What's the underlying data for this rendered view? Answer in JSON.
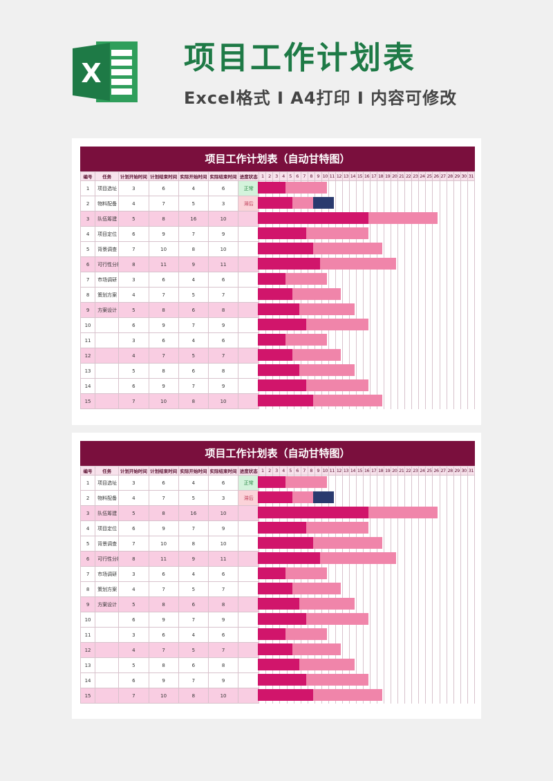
{
  "header": {
    "title": "项目工作计划表",
    "subtitle": "Excel格式 Ⅰ A4打印 Ⅰ 内容可修改",
    "logo_letter": "X"
  },
  "sheet": {
    "banner": "项目工作计划表（自动甘特图）",
    "columns": [
      "编号",
      "任务",
      "计划开始时间",
      "计划结束时间",
      "实际开始时间",
      "实际结束时间",
      "进度状态"
    ],
    "days": [
      "1",
      "2",
      "3",
      "4",
      "5",
      "6",
      "7",
      "8",
      "9",
      "10",
      "11",
      "12",
      "13",
      "14",
      "15",
      "16",
      "17",
      "18",
      "19",
      "20",
      "21",
      "22",
      "23",
      "24",
      "25",
      "26",
      "27",
      "28",
      "29",
      "30",
      "31"
    ],
    "rows": [
      {
        "no": "1",
        "task": "项目选址",
        "ps": "3",
        "pe": "6",
        "as": "4",
        "ae": "6",
        "status": "正常"
      },
      {
        "no": "2",
        "task": "物料配备",
        "ps": "4",
        "pe": "7",
        "as": "5",
        "ae": "3",
        "status": "滞后"
      },
      {
        "no": "3",
        "task": "队伍筹建",
        "ps": "5",
        "pe": "8",
        "as": "16",
        "ae": "10",
        "status": ""
      },
      {
        "no": "4",
        "task": "项目定位",
        "ps": "6",
        "pe": "9",
        "as": "7",
        "ae": "9",
        "status": ""
      },
      {
        "no": "5",
        "task": "背景调查",
        "ps": "7",
        "pe": "10",
        "as": "8",
        "ae": "10",
        "status": ""
      },
      {
        "no": "6",
        "task": "可行性分析",
        "ps": "8",
        "pe": "11",
        "as": "9",
        "ae": "11",
        "status": ""
      },
      {
        "no": "7",
        "task": "市场调研",
        "ps": "3",
        "pe": "6",
        "as": "4",
        "ae": "6",
        "status": ""
      },
      {
        "no": "8",
        "task": "策划方案",
        "ps": "4",
        "pe": "7",
        "as": "5",
        "ae": "7",
        "status": ""
      },
      {
        "no": "9",
        "task": "方案设计",
        "ps": "5",
        "pe": "8",
        "as": "6",
        "ae": "8",
        "status": ""
      },
      {
        "no": "10",
        "task": "",
        "ps": "6",
        "pe": "9",
        "as": "7",
        "ae": "9",
        "status": ""
      },
      {
        "no": "11",
        "task": "",
        "ps": "3",
        "pe": "6",
        "as": "4",
        "ae": "6",
        "status": ""
      },
      {
        "no": "12",
        "task": "",
        "ps": "4",
        "pe": "7",
        "as": "5",
        "ae": "7",
        "status": ""
      },
      {
        "no": "13",
        "task": "",
        "ps": "5",
        "pe": "8",
        "as": "6",
        "ae": "8",
        "status": ""
      },
      {
        "no": "14",
        "task": "",
        "ps": "6",
        "pe": "9",
        "as": "7",
        "ae": "9",
        "status": ""
      },
      {
        "no": "15",
        "task": "",
        "ps": "7",
        "pe": "10",
        "as": "8",
        "ae": "10",
        "status": ""
      }
    ],
    "gantt": [
      {
        "a": [
          0,
          4
        ],
        "b": [
          4,
          10
        ],
        "note": null
      },
      {
        "a": [
          0,
          5
        ],
        "b": [
          5,
          8
        ],
        "note": [
          8,
          11
        ]
      },
      {
        "a": [
          0,
          16
        ],
        "b": [
          16,
          26
        ],
        "note": null
      },
      {
        "a": [
          0,
          7
        ],
        "b": [
          7,
          16
        ],
        "note": null
      },
      {
        "a": [
          0,
          8
        ],
        "b": [
          8,
          18
        ],
        "note": null
      },
      {
        "a": [
          0,
          9
        ],
        "b": [
          9,
          20
        ],
        "note": null
      },
      {
        "a": [
          0,
          4
        ],
        "b": [
          4,
          10
        ],
        "note": null
      },
      {
        "a": [
          0,
          5
        ],
        "b": [
          5,
          12
        ],
        "note": null
      },
      {
        "a": [
          0,
          6
        ],
        "b": [
          6,
          14
        ],
        "note": null
      },
      {
        "a": [
          0,
          7
        ],
        "b": [
          7,
          16
        ],
        "note": null
      },
      {
        "a": [
          0,
          4
        ],
        "b": [
          4,
          10
        ],
        "note": null
      },
      {
        "a": [
          0,
          5
        ],
        "b": [
          5,
          12
        ],
        "note": null
      },
      {
        "a": [
          0,
          6
        ],
        "b": [
          6,
          14
        ],
        "note": null
      },
      {
        "a": [
          0,
          7
        ],
        "b": [
          7,
          16
        ],
        "note": null
      },
      {
        "a": [
          0,
          8
        ],
        "b": [
          8,
          18
        ],
        "note": null
      }
    ],
    "colors": {
      "actual": "#d1156b",
      "plan": "#f085aa",
      "note": "#2a3a6e",
      "banner": "#7a0f3d",
      "row_pink": "#f9cde2"
    }
  }
}
